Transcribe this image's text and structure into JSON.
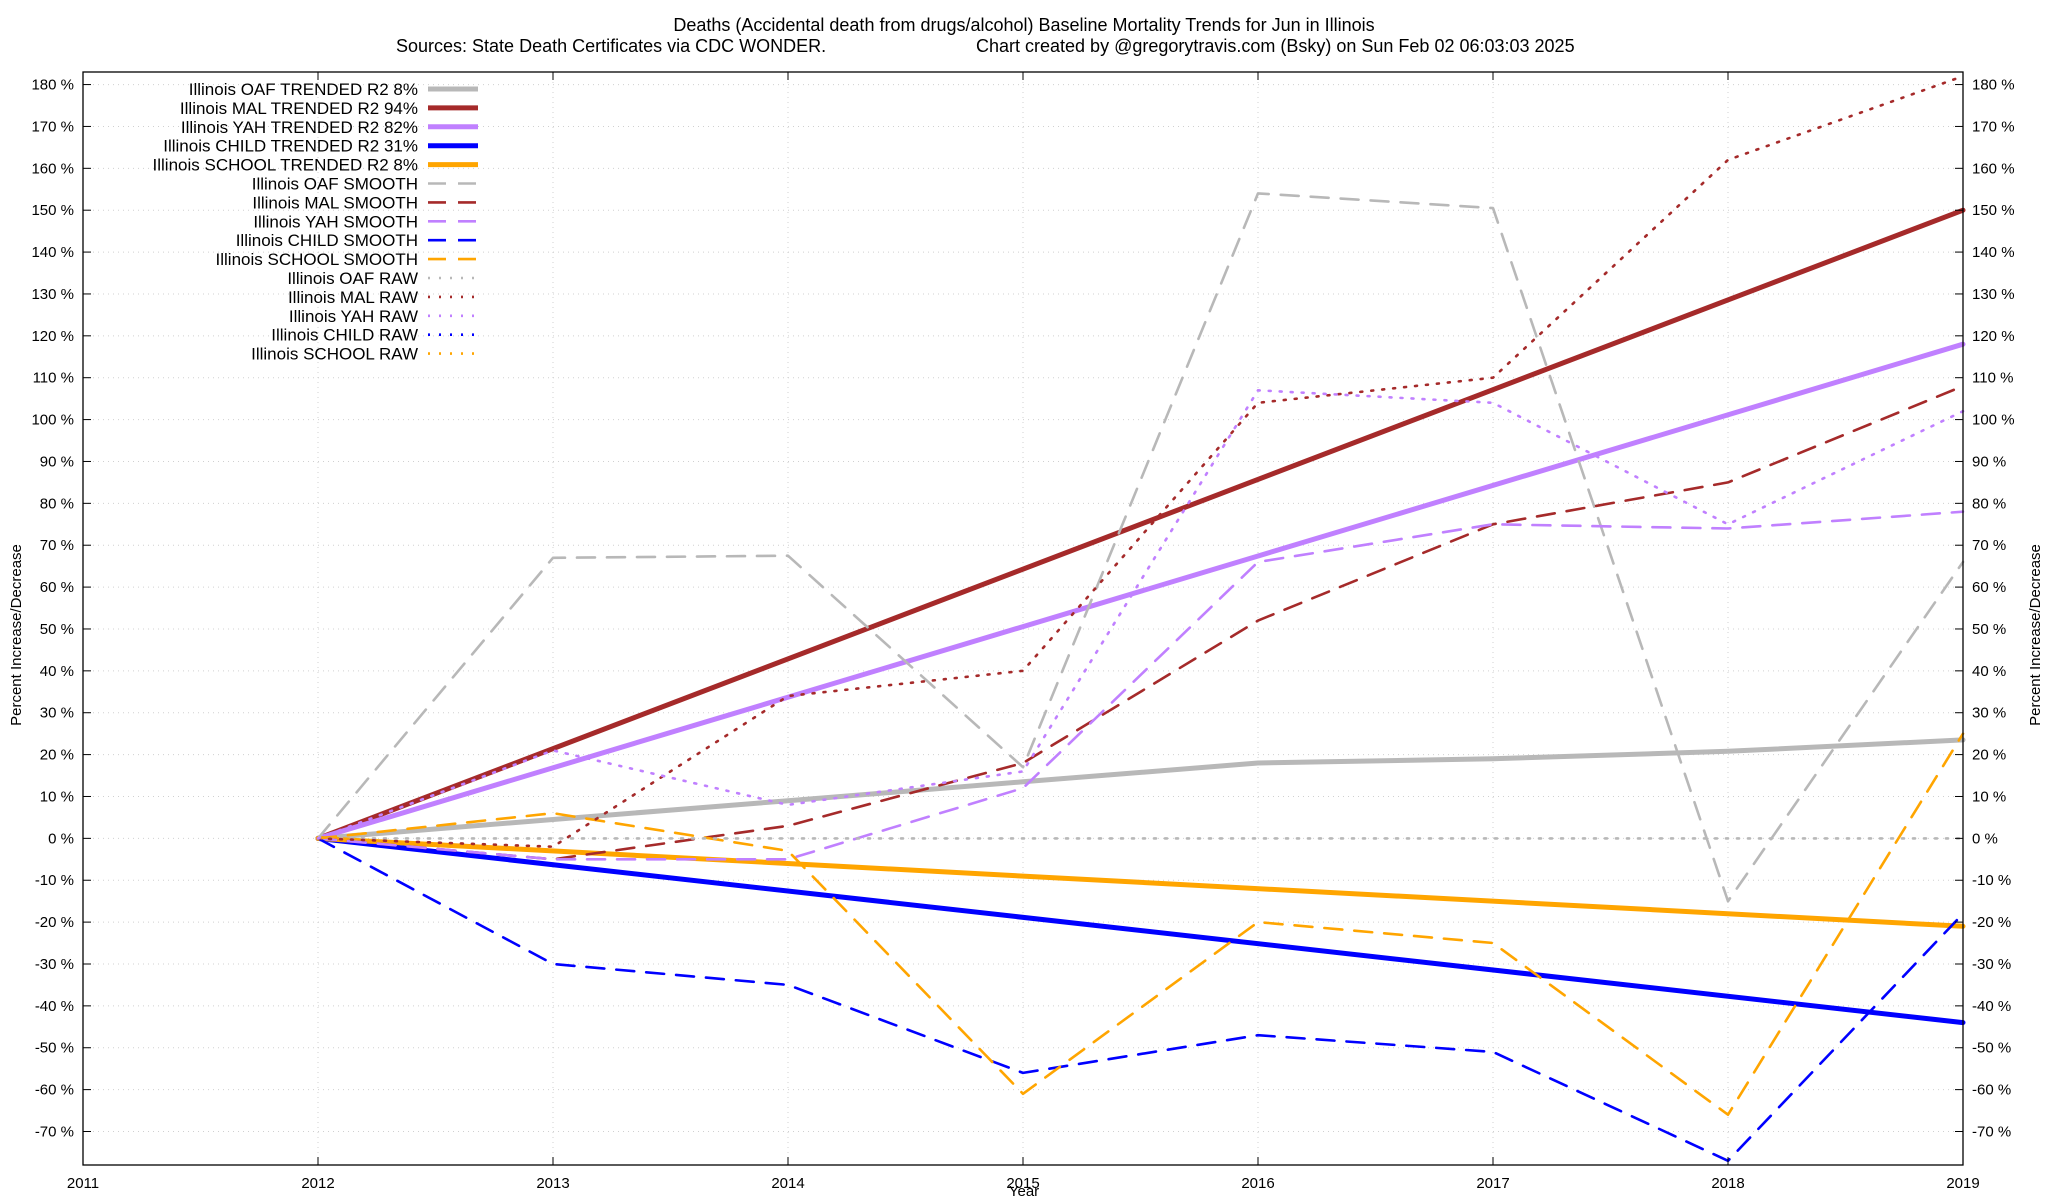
{
  "chart_data": {
    "type": "line",
    "title": "Deaths (Accidental death from drugs/alcohol)  Baseline Mortality Trends for Jun in Illinois",
    "subtitle_left": "Sources: State Death Certificates via CDC WONDER.",
    "subtitle_right": "Chart created by @gregorytravis.com (Bsky) on Sun Feb 02 06:03:03 2025",
    "xlabel": "Year",
    "ylabel_left": "Percent Increase/Decrease",
    "ylabel_right": "Percent Increase/Decrease",
    "xlim": [
      2011,
      2019
    ],
    "ylim": [
      -78,
      183
    ],
    "x_ticks": [
      "2011",
      "2012",
      "2013",
      "2014",
      "2015",
      "2016",
      "2017",
      "2018",
      "2019"
    ],
    "y_ticks": [
      "180 %",
      "170 %",
      "160 %",
      "150 %",
      "140 %",
      "130 %",
      "120 %",
      "110 %",
      "100 %",
      "90 %",
      "80 %",
      "70 %",
      "60 %",
      "50 %",
      "40 %",
      "30 %",
      "20 %",
      "10 %",
      "0 %",
      "-10 %",
      "-20 %",
      "-30 %",
      "-40 %",
      "-50 %",
      "-60 %",
      "-70 %"
    ],
    "y_tick_values": [
      180,
      170,
      160,
      150,
      140,
      130,
      120,
      110,
      100,
      90,
      80,
      70,
      60,
      50,
      40,
      30,
      20,
      10,
      0,
      -10,
      -20,
      -30,
      -40,
      -50,
      -60,
      -70
    ],
    "grid": true,
    "legend_position": "top-left",
    "series": [
      {
        "name": "Illinois OAF TRENDED R2  8%",
        "style": "solid",
        "color": "#b8b8b8",
        "x": [
          2012,
          2013,
          2014,
          2015,
          2016,
          2017,
          2018,
          2019
        ],
        "values": [
          0,
          4.5,
          9,
          13.5,
          18,
          19,
          20.8,
          23.5
        ]
      },
      {
        "name": "Illinois MAL TRENDED R2  94%",
        "style": "solid",
        "color": "#a52a2a",
        "x": [
          2012,
          2019
        ],
        "values": [
          0,
          150
        ]
      },
      {
        "name": "Illinois YAH TRENDED R2  82%",
        "style": "solid",
        "color": "#c080ff",
        "x": [
          2012,
          2019
        ],
        "values": [
          0,
          118
        ]
      },
      {
        "name": "Illinois CHILD TRENDED R2  31%",
        "style": "solid",
        "color": "#0000ff",
        "x": [
          2012,
          2019
        ],
        "values": [
          0,
          -44
        ]
      },
      {
        "name": "Illinois SCHOOL TRENDED R2  8%",
        "style": "solid",
        "color": "#ffa500",
        "x": [
          2012,
          2019
        ],
        "values": [
          0,
          -21
        ]
      },
      {
        "name": "Illinois OAF SMOOTH",
        "style": "dashed",
        "color": "#b8b8b8",
        "x": [
          2012,
          2013,
          2014,
          2015,
          2016,
          2017,
          2018,
          2019
        ],
        "values": [
          0,
          67,
          67.5,
          17,
          154,
          150.5,
          -15,
          66
        ]
      },
      {
        "name": "Illinois MAL SMOOTH",
        "style": "dashed",
        "color": "#a52a2a",
        "x": [
          2012,
          2013,
          2014,
          2015,
          2016,
          2017,
          2018,
          2019
        ],
        "values": [
          0,
          -5,
          3,
          18,
          52,
          75,
          85,
          108
        ]
      },
      {
        "name": "Illinois YAH SMOOTH",
        "style": "dashed",
        "color": "#c080ff",
        "x": [
          2012,
          2013,
          2014,
          2015,
          2016,
          2017,
          2018,
          2019
        ],
        "values": [
          0,
          -5,
          -5,
          12,
          66,
          75,
          74,
          78
        ]
      },
      {
        "name": "Illinois CHILD SMOOTH",
        "style": "dashed",
        "color": "#0000ff",
        "x": [
          2012,
          2013,
          2014,
          2015,
          2016,
          2017,
          2018,
          2019
        ],
        "values": [
          0,
          -30,
          -35,
          -56,
          -47,
          -51,
          -77,
          -18
        ]
      },
      {
        "name": "Illinois SCHOOL SMOOTH",
        "style": "dashed",
        "color": "#ffa500",
        "x": [
          2012,
          2013,
          2014,
          2015,
          2016,
          2017,
          2018,
          2019
        ],
        "values": [
          0,
          6,
          -3,
          -61,
          -20,
          -25,
          -66,
          25
        ]
      },
      {
        "name": "Illinois OAF RAW",
        "style": "dotted",
        "color": "#b8b8b8",
        "x": [
          2012,
          2019
        ],
        "values": [
          0,
          0
        ]
      },
      {
        "name": "Illinois MAL RAW",
        "style": "dotted",
        "color": "#a52a2a",
        "x": [
          2012,
          2013,
          2014,
          2015,
          2016,
          2017,
          2018,
          2019
        ],
        "values": [
          0,
          -2,
          34,
          40,
          104,
          110,
          162,
          182
        ]
      },
      {
        "name": "Illinois YAH RAW",
        "style": "dotted",
        "color": "#c080ff",
        "x": [
          2012,
          2013,
          2014,
          2015,
          2016,
          2017,
          2018,
          2019
        ],
        "values": [
          0,
          21,
          8,
          16,
          107,
          104,
          75,
          102
        ]
      },
      {
        "name": "Illinois CHILD RAW",
        "style": "dotted",
        "color": "#0000ff",
        "x": [],
        "values": []
      },
      {
        "name": "Illinois SCHOOL RAW",
        "style": "dotted",
        "color": "#ffa500",
        "x": [],
        "values": []
      }
    ]
  }
}
